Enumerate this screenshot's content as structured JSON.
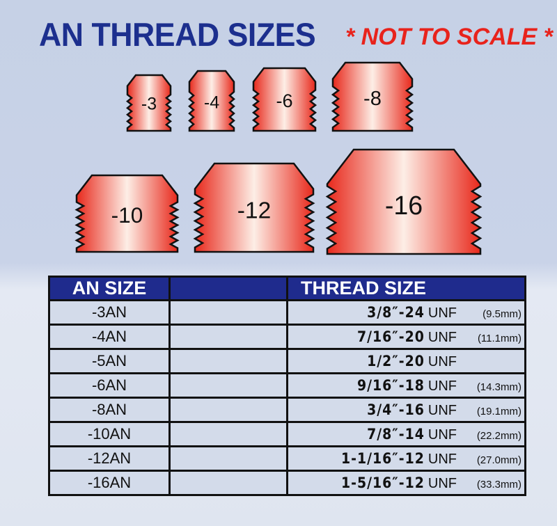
{
  "title": "AN THREAD SIZES",
  "note": "* NOT TO SCALE *",
  "colors": {
    "title": "#1c2f8e",
    "note": "#e8231c",
    "header_bg": "#1f2b8d",
    "fitting_edge": "#e8291c",
    "fitting_center": "#fdeee6"
  },
  "fittings": [
    {
      "label": "-3"
    },
    {
      "label": "-4"
    },
    {
      "label": "-6"
    },
    {
      "label": "-8"
    },
    {
      "label": "-10"
    },
    {
      "label": "-12"
    },
    {
      "label": "-16"
    }
  ],
  "table": {
    "headers": [
      "AN SIZE",
      "",
      "THREAD SIZE"
    ],
    "rows": [
      {
        "an": "-3AN",
        "thread": "3/8″-24",
        "unf": "UNF",
        "mm": "(9.5mm)"
      },
      {
        "an": "-4AN",
        "thread": "7/16″-20",
        "unf": "UNF",
        "mm": "(11.1mm)"
      },
      {
        "an": "-5AN",
        "thread": "1/2″-20",
        "unf": "UNF",
        "mm": ""
      },
      {
        "an": "-6AN",
        "thread": "9/16″-18",
        "unf": "UNF",
        "mm": "(14.3mm)"
      },
      {
        "an": "-8AN",
        "thread": "3/4″-16",
        "unf": "UNF",
        "mm": "(19.1mm)"
      },
      {
        "an": "-10AN",
        "thread": "7/8″-14",
        "unf": "UNF",
        "mm": "(22.2mm)"
      },
      {
        "an": "-12AN",
        "thread": "1-1/16″-12",
        "unf": "UNF",
        "mm": "(27.0mm)"
      },
      {
        "an": "-16AN",
        "thread": "1-5/16″-12",
        "unf": "UNF",
        "mm": "(33.3mm)"
      }
    ]
  }
}
